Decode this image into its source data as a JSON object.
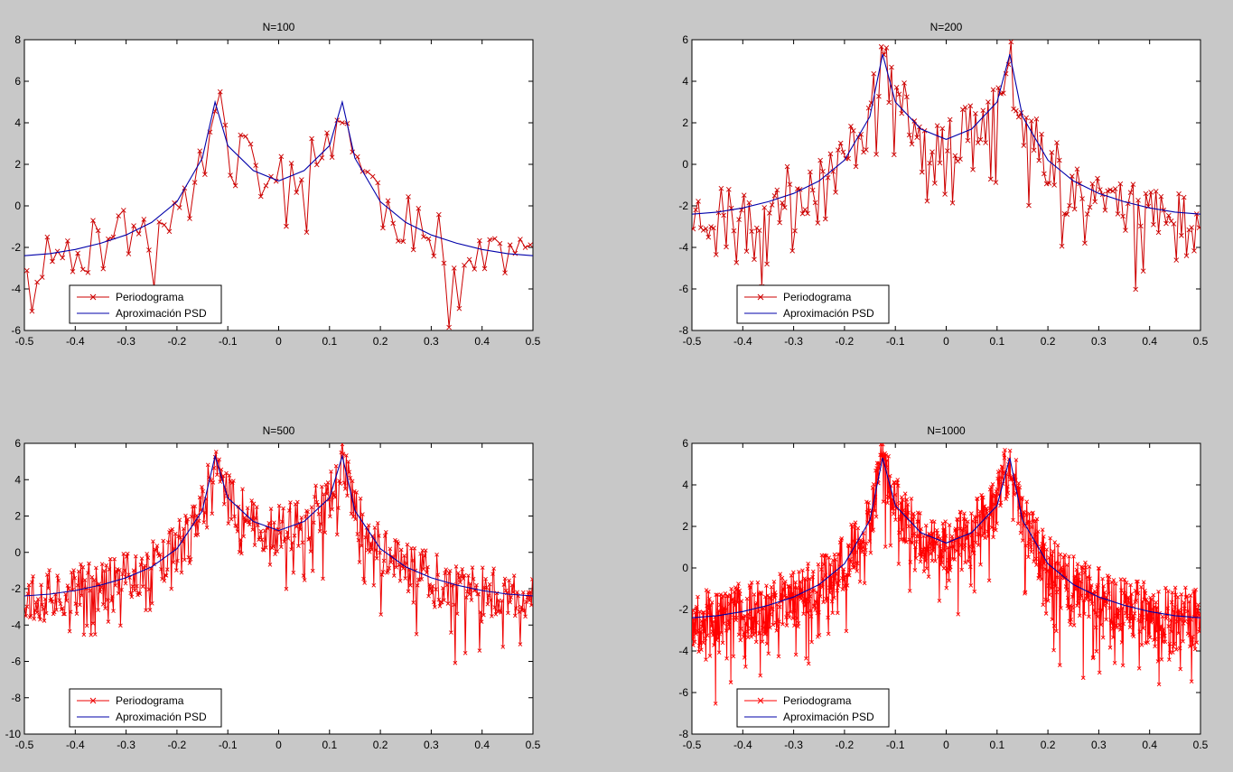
{
  "figure": {
    "background": "#c8c8c8"
  },
  "chart_data": [
    {
      "type": "line",
      "title": "N=100",
      "n": 100,
      "seed": 11,
      "xlim": [
        -0.5,
        0.5
      ],
      "ylim": [
        -6,
        8
      ],
      "xticks": [
        -0.5,
        -0.4,
        -0.3,
        -0.2,
        -0.1,
        0,
        0.1,
        0.2,
        0.3,
        0.4,
        0.5
      ],
      "xtick_labels": [
        "-0.5",
        "-0.4",
        "-0.3",
        "-0.2",
        "-0.1",
        "0",
        "0.1",
        "0.2",
        "0.3",
        "0.4",
        "0.5"
      ],
      "yticks": [
        -6,
        -4,
        -2,
        0,
        2,
        4,
        6,
        8
      ],
      "ytick_labels": [
        "-6",
        "-4",
        "-2",
        "0",
        "2",
        "4",
        "6",
        "8"
      ],
      "legend": "bottom-left",
      "series": [
        {
          "name": "Periodograma",
          "color": "#cc0000",
          "marker": "x",
          "kind": "periodogram"
        },
        {
          "name": "Aproximación PSD",
          "color": "#0000aa",
          "marker": "none",
          "kind": "psd",
          "x": [
            -0.5,
            -0.45,
            -0.4,
            -0.35,
            -0.3,
            -0.25,
            -0.2,
            -0.15,
            -0.125,
            -0.1,
            -0.05,
            0,
            0.05,
            0.1,
            0.125,
            0.15,
            0.2,
            0.25,
            0.3,
            0.35,
            0.4,
            0.45,
            0.5
          ],
          "y": [
            -2.4,
            -2.3,
            -2.1,
            -1.8,
            -1.4,
            -0.8,
            0.2,
            2.3,
            5.0,
            2.9,
            1.7,
            1.2,
            1.7,
            2.9,
            5.0,
            2.3,
            0.2,
            -0.8,
            -1.4,
            -1.8,
            -2.1,
            -2.3,
            -2.4
          ]
        }
      ]
    },
    {
      "type": "line",
      "title": "N=200",
      "n": 200,
      "seed": 23,
      "xlim": [
        -0.5,
        0.5
      ],
      "ylim": [
        -8,
        6
      ],
      "xticks": [
        -0.5,
        -0.4,
        -0.3,
        -0.2,
        -0.1,
        0,
        0.1,
        0.2,
        0.3,
        0.4,
        0.5
      ],
      "xtick_labels": [
        "-0.5",
        "-0.4",
        "-0.3",
        "-0.2",
        "-0.1",
        "0",
        "0.1",
        "0.2",
        "0.3",
        "0.4",
        "0.5"
      ],
      "yticks": [
        -8,
        -6,
        -4,
        -2,
        0,
        2,
        4,
        6
      ],
      "ytick_labels": [
        "-8",
        "-6",
        "-4",
        "-2",
        "0",
        "2",
        "4",
        "6"
      ],
      "legend": "bottom-left",
      "series": [
        {
          "name": "Periodograma",
          "color": "#cc0000",
          "marker": "x",
          "kind": "periodogram"
        },
        {
          "name": "Aproximación PSD",
          "color": "#0000aa",
          "marker": "none",
          "kind": "psd",
          "x": [
            -0.5,
            -0.45,
            -0.4,
            -0.35,
            -0.3,
            -0.25,
            -0.2,
            -0.15,
            -0.125,
            -0.1,
            -0.05,
            0,
            0.05,
            0.1,
            0.125,
            0.15,
            0.2,
            0.25,
            0.3,
            0.35,
            0.4,
            0.45,
            0.5
          ],
          "y": [
            -2.4,
            -2.3,
            -2.1,
            -1.8,
            -1.4,
            -0.8,
            0.2,
            2.3,
            5.3,
            3.0,
            1.7,
            1.2,
            1.7,
            3.0,
            5.3,
            2.3,
            0.2,
            -0.8,
            -1.4,
            -1.8,
            -2.1,
            -2.3,
            -2.4
          ]
        }
      ]
    },
    {
      "type": "line",
      "title": "N=500",
      "n": 500,
      "seed": 37,
      "xlim": [
        -0.5,
        0.5
      ],
      "ylim": [
        -10,
        6
      ],
      "xticks": [
        -0.5,
        -0.4,
        -0.3,
        -0.2,
        -0.1,
        0,
        0.1,
        0.2,
        0.3,
        0.4,
        0.5
      ],
      "xtick_labels": [
        "-0.5",
        "-0.4",
        "-0.3",
        "-0.2",
        "-0.1",
        "0",
        "0.1",
        "0.2",
        "0.3",
        "0.4",
        "0.5"
      ],
      "yticks": [
        -10,
        -8,
        -6,
        -4,
        -2,
        0,
        2,
        4,
        6
      ],
      "ytick_labels": [
        "-10",
        "-8",
        "-6",
        "-4",
        "-2",
        "0",
        "2",
        "4",
        "6"
      ],
      "legend": "bottom-left",
      "series": [
        {
          "name": "Periodograma",
          "color": "#ee0000",
          "marker": "x",
          "kind": "periodogram"
        },
        {
          "name": "Aproximación PSD",
          "color": "#0000aa",
          "marker": "none",
          "kind": "psd",
          "x": [
            -0.5,
            -0.45,
            -0.4,
            -0.35,
            -0.3,
            -0.25,
            -0.2,
            -0.15,
            -0.125,
            -0.1,
            -0.05,
            0,
            0.05,
            0.1,
            0.125,
            0.15,
            0.2,
            0.25,
            0.3,
            0.35,
            0.4,
            0.45,
            0.5
          ],
          "y": [
            -2.4,
            -2.3,
            -2.1,
            -1.8,
            -1.4,
            -0.8,
            0.2,
            2.3,
            5.3,
            3.0,
            1.7,
            1.2,
            1.7,
            3.0,
            5.3,
            2.3,
            0.2,
            -0.8,
            -1.4,
            -1.8,
            -2.1,
            -2.3,
            -2.4
          ]
        }
      ]
    },
    {
      "type": "line",
      "title": "N=1000",
      "n": 1000,
      "seed": 53,
      "xlim": [
        -0.5,
        0.5
      ],
      "ylim": [
        -8,
        6
      ],
      "xticks": [
        -0.5,
        -0.4,
        -0.3,
        -0.2,
        -0.1,
        0,
        0.1,
        0.2,
        0.3,
        0.4,
        0.5
      ],
      "xtick_labels": [
        "-0.5",
        "-0.4",
        "-0.3",
        "-0.2",
        "-0.1",
        "0",
        "0.1",
        "0.2",
        "0.3",
        "0.4",
        "0.5"
      ],
      "yticks": [
        -8,
        -6,
        -4,
        -2,
        0,
        2,
        4,
        6
      ],
      "ytick_labels": [
        "-8",
        "-6",
        "-4",
        "-2",
        "0",
        "2",
        "4",
        "6"
      ],
      "legend": "bottom-left",
      "series": [
        {
          "name": "Periodograma",
          "color": "#ff0000",
          "marker": "x",
          "kind": "periodogram"
        },
        {
          "name": "Aproximación PSD",
          "color": "#0000aa",
          "marker": "none",
          "kind": "psd",
          "x": [
            -0.5,
            -0.45,
            -0.4,
            -0.35,
            -0.3,
            -0.25,
            -0.2,
            -0.15,
            -0.125,
            -0.1,
            -0.05,
            0,
            0.05,
            0.1,
            0.125,
            0.15,
            0.2,
            0.25,
            0.3,
            0.35,
            0.4,
            0.45,
            0.5
          ],
          "y": [
            -2.4,
            -2.3,
            -2.1,
            -1.8,
            -1.4,
            -0.8,
            0.2,
            2.3,
            5.3,
            3.0,
            1.7,
            1.2,
            1.7,
            3.0,
            5.3,
            2.3,
            0.2,
            -0.8,
            -1.4,
            -1.8,
            -2.1,
            -2.3,
            -2.4
          ]
        }
      ]
    }
  ]
}
